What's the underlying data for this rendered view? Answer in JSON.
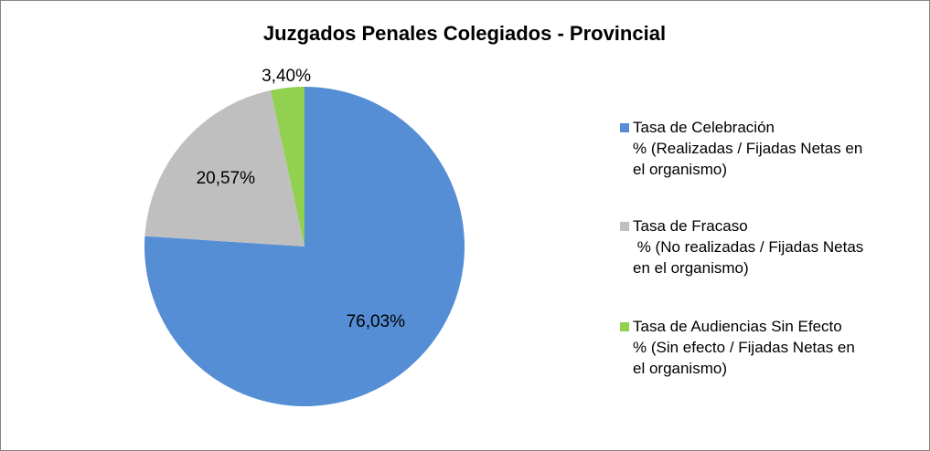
{
  "chart_data": {
    "type": "pie",
    "title": "Juzgados Penales Colegiados - Provincial",
    "series": [
      {
        "name": "Tasa de Celebración\n% (Realizadas / Fijadas Netas en\nel organismo)",
        "color": "#558ed5",
        "values": [
          76.03
        ],
        "value_labels": [
          "76,03%"
        ]
      },
      {
        "name": "Tasa de Fracaso\n % (No realizadas / Fijadas Netas\nen el organismo)",
        "color": "#bfbfbf",
        "values": [
          20.57
        ],
        "value_labels": [
          "20,57%"
        ]
      },
      {
        "name": "Tasa de Audiencias Sin Efecto\n% (Sin efecto / Fijadas Netas en\nel organismo)",
        "color": "#92d050",
        "values": [
          3.4
        ],
        "value_labels": [
          "3,40%"
        ]
      }
    ],
    "legend": "right"
  }
}
